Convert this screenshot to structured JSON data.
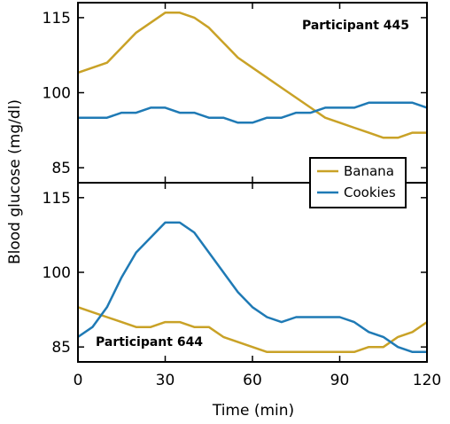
{
  "chart_data": {
    "type": "line",
    "xlabel": "Time (min)",
    "ylabel": "Blood glucose (mg/dl)",
    "xlim": [
      0,
      120
    ],
    "ylim": [
      82,
      118
    ],
    "x_ticks": [
      "0",
      "30",
      "60",
      "90",
      "120"
    ],
    "y_ticks": [
      "85",
      "100",
      "115"
    ],
    "legend": {
      "placement": "bottom-right of top panel",
      "items": [
        {
          "name": "Banana",
          "color": "#c9a227"
        },
        {
          "name": "Cookies",
          "color": "#1f7ab5"
        }
      ]
    },
    "panels": [
      {
        "annotation": "Participant 445",
        "series": [
          {
            "name": "Banana",
            "color": "#c9a227",
            "x": [
              0,
              10,
              20,
              30,
              35,
              40,
              45,
              50,
              55,
              60,
              70,
              80,
              85,
              90,
              95,
              100,
              105,
              110,
              115,
              120
            ],
            "y": [
              104,
              106,
              112,
              116,
              116,
              115,
              113,
              110,
              107,
              105,
              101,
              97,
              95,
              94,
              93,
              92,
              91,
              91,
              92,
              92
            ]
          },
          {
            "name": "Cookies",
            "color": "#1f7ab5",
            "x": [
              0,
              10,
              15,
              20,
              25,
              30,
              35,
              40,
              45,
              50,
              55,
              60,
              65,
              70,
              75,
              80,
              85,
              90,
              95,
              100,
              105,
              110,
              115,
              120
            ],
            "y": [
              95,
              95,
              96,
              96,
              97,
              97,
              96,
              96,
              95,
              95,
              94,
              94,
              95,
              95,
              96,
              96,
              97,
              97,
              97,
              98,
              98,
              98,
              98,
              97
            ]
          }
        ]
      },
      {
        "annotation": "Participant 644",
        "series": [
          {
            "name": "Banana",
            "color": "#c9a227",
            "x": [
              0,
              5,
              10,
              15,
              20,
              25,
              30,
              35,
              40,
              45,
              50,
              55,
              60,
              65,
              70,
              80,
              90,
              95,
              100,
              105,
              110,
              115,
              120
            ],
            "y": [
              93,
              92,
              91,
              90,
              89,
              89,
              90,
              90,
              89,
              89,
              87,
              86,
              85,
              84,
              84,
              84,
              84,
              84,
              85,
              85,
              87,
              88,
              90
            ]
          },
          {
            "name": "Cookies",
            "color": "#1f7ab5",
            "x": [
              0,
              5,
              10,
              15,
              20,
              25,
              30,
              35,
              40,
              45,
              50,
              55,
              60,
              65,
              70,
              75,
              80,
              85,
              90,
              95,
              100,
              105,
              110,
              115,
              120
            ],
            "y": [
              87,
              89,
              93,
              99,
              104,
              107,
              110,
              110,
              108,
              104,
              100,
              96,
              93,
              91,
              90,
              91,
              91,
              91,
              91,
              90,
              88,
              87,
              85,
              84,
              84
            ]
          }
        ]
      }
    ]
  }
}
